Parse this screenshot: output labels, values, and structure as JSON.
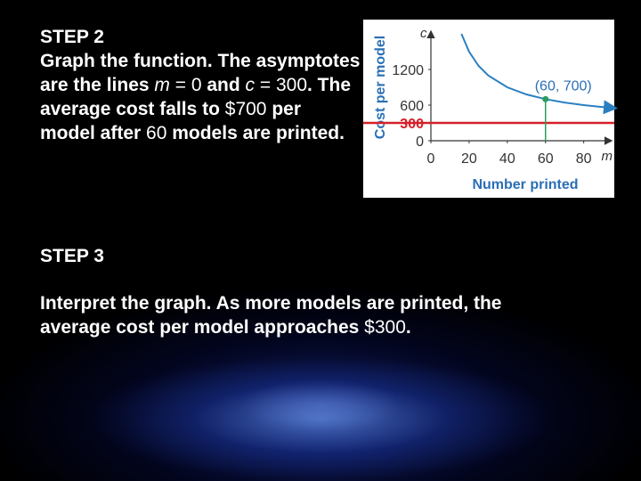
{
  "step2": {
    "heading": "STEP 2",
    "body": [
      "Graph the function. The asymptotes are the lines ",
      "m",
      " = 0",
      " and ",
      "c",
      " = 300",
      ". The average cost falls to ",
      "$700",
      " per model after ",
      "60",
      " models are printed."
    ]
  },
  "step3": {
    "heading": "STEP 3",
    "body": [
      "Interpret the graph. As more models are printed, the average cost per model approaches ",
      "$300",
      "."
    ]
  },
  "chart_data": {
    "type": "line",
    "y_label": "Cost per model",
    "x_label": "Number printed",
    "y_var": "c",
    "x_var": "m",
    "x": [
      16,
      20,
      25,
      30,
      40,
      50,
      60,
      70,
      80,
      90,
      96
    ],
    "series": [
      {
        "color": "#2a7fc1",
        "values": [
          1800,
          1500,
          1260,
          1100,
          900,
          780,
          700,
          643,
          600,
          567,
          550
        ]
      }
    ],
    "asymptote": {
      "value": 300,
      "color": "#d6202a"
    },
    "point": {
      "x": 60,
      "y": 700,
      "label": "(60, 700)",
      "color": "#2a9d5c"
    },
    "xlim": [
      0,
      96
    ],
    "ylim": [
      0,
      1800
    ],
    "xticks": [
      0,
      20,
      40,
      60,
      80
    ],
    "yticks": [
      0,
      300,
      600,
      1200
    ]
  }
}
